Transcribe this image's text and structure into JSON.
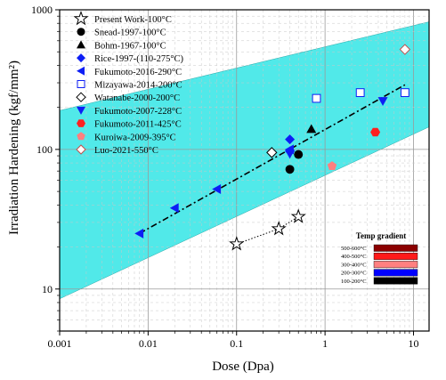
{
  "chart_data": {
    "type": "scatter",
    "xlabel": "Dose (Dpa)",
    "ylabel": "Irradiation Hardening (kgf/mm²)",
    "x_scale": "log",
    "y_scale": "log",
    "xlim": [
      0.001,
      15
    ],
    "ylim": [
      5,
      1000
    ],
    "x_ticks": [
      0.001,
      0.01,
      0.1,
      1,
      10
    ],
    "x_tick_labels": [
      "0.001",
      "0.01",
      "0.1",
      "1",
      "10"
    ],
    "y_ticks": [
      10,
      100,
      1000
    ],
    "y_tick_labels": [
      "10",
      "100",
      "1000"
    ],
    "grid": true,
    "legend_position": "top-left",
    "band": {
      "color": "#33e5e5",
      "upper": [
        [
          0.001,
          190
        ],
        [
          15,
          820
        ]
      ],
      "lower": [
        [
          0.001,
          8.5
        ],
        [
          15,
          145
        ]
      ]
    },
    "fit_line": {
      "style": "dash-dot",
      "points": [
        [
          0.008,
          25
        ],
        [
          8,
          290
        ]
      ]
    },
    "series": [
      {
        "name": "Present Work-100°C",
        "marker": "star-open",
        "color": "#000000",
        "connect": "dotted",
        "points": [
          [
            0.1,
            21
          ],
          [
            0.3,
            27
          ],
          [
            0.5,
            33
          ]
        ]
      },
      {
        "name": "Snead-1997-100°C",
        "marker": "circle",
        "color": "#000000",
        "points": [
          [
            0.5,
            92
          ]
        ]
      },
      {
        "name": "Bohm-1967-100°C",
        "marker": "triangle-up",
        "color": "#000000",
        "points": [
          [
            0.7,
            140
          ]
        ]
      },
      {
        "name": "Rice-1997-(110-275°C)",
        "marker": "diamond",
        "color": "#0d1ef5",
        "points": [
          [
            0.4,
            118
          ],
          [
            0.4,
            97
          ]
        ]
      },
      {
        "name": "Fukumoto-2016-290°C",
        "marker": "triangle-left",
        "color": "#0d1ef5",
        "points": [
          [
            0.008,
            25
          ],
          [
            0.02,
            38
          ],
          [
            0.06,
            52
          ],
          [
            0.4,
            100
          ]
        ]
      },
      {
        "name": "Mizayawa-2014-200°C",
        "marker": "square-open",
        "color": "#0d1ef5",
        "points": [
          [
            0.8,
            232
          ],
          [
            2.5,
            255
          ],
          [
            8,
            255
          ]
        ]
      },
      {
        "name": "Watanabe-2000-200°C",
        "marker": "diamond-open",
        "color": "#000000",
        "points": [
          [
            0.25,
            95
          ]
        ]
      },
      {
        "name": "Fukumoto-2007-228°C",
        "marker": "triangle-down",
        "color": "#0d1ef5",
        "points": [
          [
            0.4,
            93
          ],
          [
            4.5,
            222
          ]
        ]
      },
      {
        "name": "Fukumoto-2011-425°C",
        "marker": "hexagon",
        "color": "#ff2020",
        "points": [
          [
            3.7,
            133
          ]
        ]
      },
      {
        "name": "Kuroiwa-2009-395°C",
        "marker": "pentagon",
        "color": "#ff7f7f",
        "points": [
          [
            1.2,
            76
          ]
        ]
      },
      {
        "name": "Luo-2021-550°C",
        "marker": "diamond-open",
        "color": "#c0504d",
        "points": [
          [
            8,
            520
          ]
        ]
      },
      {
        "name": "",
        "marker": "circle",
        "color": "#000000",
        "points": [
          [
            0.4,
            72
          ]
        ]
      }
    ],
    "colorbar": {
      "title": "Temp gradient",
      "entries": [
        {
          "label": "500-600°C",
          "color": "#8b0000"
        },
        {
          "label": "400-500°C",
          "color": "#ff1a1a"
        },
        {
          "label": "300-400°C",
          "color": "#ff8080"
        },
        {
          "label": "200-300°C",
          "color": "#0000ff"
        },
        {
          "label": "100-200°C",
          "color": "#000000"
        }
      ]
    }
  }
}
